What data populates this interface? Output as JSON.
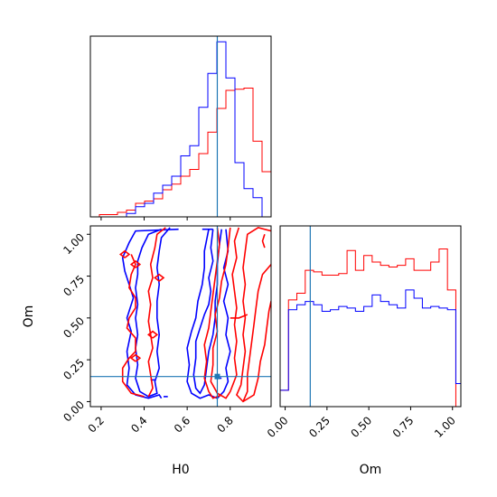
{
  "chart_data": {
    "type": "corner",
    "parameters": [
      "H0",
      "Om"
    ],
    "xlabel_h0": "H0",
    "xlabel_om": "Om",
    "ylabel_om": "Om",
    "truth": {
      "H0": 0.74,
      "Om": 0.15
    },
    "truth_color": "#1f77b4",
    "series_colors": {
      "red": "#ff0000",
      "blue": "#0000ff"
    },
    "h0_ticks": [
      "0.2",
      "0.4",
      "0.6",
      "0.8"
    ],
    "om_ticks": [
      "0.00",
      "0.25",
      "0.50",
      "0.75",
      "1.00"
    ],
    "h0_range": [
      0.15,
      0.99
    ],
    "om_range": [
      -0.03,
      1.05
    ],
    "hist_h0": {
      "edges": [
        0.15,
        0.192,
        0.234,
        0.276,
        0.318,
        0.36,
        0.402,
        0.444,
        0.486,
        0.528,
        0.57,
        0.612,
        0.654,
        0.696,
        0.738,
        0.78,
        0.822,
        0.864,
        0.906,
        0.948,
        0.99
      ],
      "ymax": 160,
      "red": [
        0,
        2,
        2,
        4,
        6,
        12,
        14,
        16,
        24,
        29,
        36,
        42,
        56,
        75,
        96,
        112,
        113,
        114,
        67,
        40
      ],
      "blue": [
        0,
        0,
        0,
        0,
        3,
        9,
        12,
        21,
        28,
        36,
        54,
        63,
        97,
        127,
        155,
        123,
        48,
        25,
        17,
        0
      ]
    },
    "hist_om": {
      "edges": [
        -0.03,
        0.02,
        0.07,
        0.12,
        0.17,
        0.22,
        0.27,
        0.32,
        0.37,
        0.42,
        0.47,
        0.52,
        0.57,
        0.62,
        0.67,
        0.72,
        0.77,
        0.82,
        0.87,
        0.92,
        0.97,
        1.02,
        1.05
      ],
      "ymax": 110,
      "red": [
        10,
        65,
        69,
        83,
        82,
        80,
        80,
        81,
        95,
        83,
        92,
        88,
        86,
        85,
        86,
        90,
        83,
        83,
        88,
        96,
        71,
        0
      ],
      "blue": [
        10,
        59,
        62,
        64,
        62,
        58,
        59,
        61,
        60,
        58,
        61,
        68,
        64,
        62,
        60,
        71,
        66,
        60,
        61,
        60,
        59,
        14
      ]
    },
    "contours": {
      "blue": [
        [
          [
            0.48,
            1.03
          ],
          [
            0.42,
            1.0
          ],
          [
            0.39,
            0.92
          ],
          [
            0.37,
            0.84
          ],
          [
            0.37,
            0.76
          ],
          [
            0.36,
            0.68
          ],
          [
            0.37,
            0.58
          ],
          [
            0.36,
            0.5
          ],
          [
            0.37,
            0.4
          ],
          [
            0.36,
            0.32
          ],
          [
            0.37,
            0.22
          ],
          [
            0.36,
            0.14
          ],
          [
            0.38,
            0.06
          ],
          [
            0.42,
            0.03
          ],
          [
            0.46,
            0.05
          ],
          [
            0.45,
            0.12
          ],
          [
            0.47,
            0.2
          ],
          [
            0.46,
            0.3
          ],
          [
            0.47,
            0.4
          ],
          [
            0.46,
            0.5
          ],
          [
            0.46,
            0.6
          ],
          [
            0.47,
            0.7
          ],
          [
            0.46,
            0.8
          ],
          [
            0.47,
            0.9
          ],
          [
            0.48,
            0.98
          ],
          [
            0.52,
            1.04
          ]
        ],
        [
          [
            0.56,
            1.03
          ],
          [
            0.36,
            1.02
          ],
          [
            0.33,
            0.95
          ],
          [
            0.3,
            0.86
          ],
          [
            0.31,
            0.78
          ],
          [
            0.33,
            0.7
          ],
          [
            0.35,
            0.62
          ],
          [
            0.32,
            0.5
          ],
          [
            0.34,
            0.42
          ],
          [
            0.32,
            0.3
          ],
          [
            0.33,
            0.2
          ],
          [
            0.32,
            0.1
          ],
          [
            0.36,
            0.04
          ],
          [
            0.42,
            0.02
          ],
          [
            0.47,
            0.04
          ],
          [
            0.48,
            0.02
          ]
        ],
        [
          [
            0.72,
            1.03
          ],
          [
            0.71,
            0.92
          ],
          [
            0.72,
            0.84
          ],
          [
            0.7,
            0.74
          ],
          [
            0.71,
            0.66
          ],
          [
            0.7,
            0.58
          ],
          [
            0.68,
            0.52
          ],
          [
            0.66,
            0.44
          ],
          [
            0.64,
            0.36
          ],
          [
            0.64,
            0.26
          ],
          [
            0.63,
            0.16
          ],
          [
            0.64,
            0.08
          ],
          [
            0.66,
            0.05
          ],
          [
            0.68,
            0.1
          ],
          [
            0.69,
            0.2
          ],
          [
            0.7,
            0.3
          ],
          [
            0.72,
            0.4
          ],
          [
            0.73,
            0.5
          ],
          [
            0.73,
            0.6
          ],
          [
            0.74,
            0.7
          ],
          [
            0.74,
            0.82
          ],
          [
            0.75,
            0.94
          ],
          [
            0.76,
            1.03
          ]
        ],
        [
          [
            0.78,
            1.03
          ],
          [
            0.79,
            0.9
          ],
          [
            0.77,
            0.8
          ],
          [
            0.79,
            0.7
          ],
          [
            0.77,
            0.6
          ],
          [
            0.79,
            0.5
          ],
          [
            0.78,
            0.4
          ],
          [
            0.8,
            0.3
          ],
          [
            0.78,
            0.2
          ],
          [
            0.79,
            0.12
          ],
          [
            0.77,
            0.06
          ],
          [
            0.74,
            0.02
          ],
          [
            0.7,
            0.04
          ],
          [
            0.66,
            0.02
          ],
          [
            0.62,
            0.05
          ],
          [
            0.6,
            0.12
          ],
          [
            0.61,
            0.22
          ],
          [
            0.6,
            0.32
          ],
          [
            0.62,
            0.42
          ],
          [
            0.64,
            0.5
          ],
          [
            0.65,
            0.6
          ],
          [
            0.67,
            0.7
          ],
          [
            0.68,
            0.8
          ],
          [
            0.68,
            0.9
          ],
          [
            0.7,
            1.03
          ]
        ],
        [
          [
            0.67,
            1.03
          ],
          [
            0.72,
            1.03
          ]
        ],
        [
          [
            0.43,
            0.13
          ],
          [
            0.45,
            0.13
          ]
        ],
        [
          [
            0.49,
            0.03
          ],
          [
            0.51,
            0.03
          ]
        ],
        [
          [
            0.74,
            0.14
          ],
          [
            0.76,
            0.14
          ]
        ]
      ],
      "red": [
        [
          [
            0.84,
            1.04
          ],
          [
            0.82,
            0.96
          ],
          [
            0.83,
            0.86
          ],
          [
            0.81,
            0.76
          ],
          [
            0.82,
            0.66
          ],
          [
            0.83,
            0.56
          ],
          [
            0.82,
            0.46
          ],
          [
            0.83,
            0.36
          ],
          [
            0.82,
            0.26
          ],
          [
            0.83,
            0.16
          ],
          [
            0.8,
            0.06
          ],
          [
            0.78,
            0.02
          ],
          [
            0.74,
            0.05
          ],
          [
            0.71,
            0.12
          ],
          [
            0.72,
            0.22
          ],
          [
            0.72,
            0.32
          ],
          [
            0.74,
            0.42
          ],
          [
            0.73,
            0.52
          ],
          [
            0.75,
            0.62
          ],
          [
            0.76,
            0.72
          ],
          [
            0.78,
            0.82
          ],
          [
            0.79,
            0.92
          ],
          [
            0.8,
            1.04
          ]
        ],
        [
          [
            0.99,
            1.02
          ],
          [
            0.93,
            1.04
          ],
          [
            0.88,
            1.0
          ],
          [
            0.87,
            0.9
          ],
          [
            0.86,
            0.8
          ],
          [
            0.87,
            0.7
          ],
          [
            0.86,
            0.6
          ],
          [
            0.87,
            0.5
          ],
          [
            0.86,
            0.4
          ],
          [
            0.87,
            0.3
          ],
          [
            0.86,
            0.2
          ],
          [
            0.85,
            0.1
          ],
          [
            0.83,
            0.04
          ],
          [
            0.86,
            0.0
          ],
          [
            0.91,
            0.04
          ],
          [
            0.93,
            0.14
          ],
          [
            0.94,
            0.24
          ],
          [
            0.96,
            0.34
          ],
          [
            0.97,
            0.44
          ],
          [
            0.98,
            0.54
          ],
          [
            0.99,
            0.6
          ]
        ],
        [
          [
            0.99,
            0.82
          ],
          [
            0.95,
            0.76
          ],
          [
            0.93,
            0.66
          ],
          [
            0.92,
            0.56
          ],
          [
            0.91,
            0.46
          ],
          [
            0.9,
            0.36
          ],
          [
            0.89,
            0.26
          ],
          [
            0.88,
            0.16
          ],
          [
            0.88,
            0.06
          ],
          [
            0.86,
            0.0
          ]
        ],
        [
          [
            0.76,
            0.04
          ],
          [
            0.72,
            0.02
          ],
          [
            0.7,
            0.06
          ],
          [
            0.68,
            0.14
          ],
          [
            0.69,
            0.24
          ],
          [
            0.68,
            0.34
          ],
          [
            0.7,
            0.44
          ],
          [
            0.71,
            0.54
          ],
          [
            0.72,
            0.64
          ],
          [
            0.73,
            0.74
          ],
          [
            0.74,
            0.84
          ],
          [
            0.75,
            0.94
          ],
          [
            0.74,
            1.04
          ]
        ],
        [
          [
            0.4,
            0.03
          ],
          [
            0.34,
            0.05
          ],
          [
            0.3,
            0.12
          ],
          [
            0.3,
            0.2
          ],
          [
            0.33,
            0.26
          ],
          [
            0.36,
            0.3
          ],
          [
            0.36,
            0.38
          ],
          [
            0.32,
            0.44
          ],
          [
            0.33,
            0.5
          ],
          [
            0.36,
            0.56
          ],
          [
            0.36,
            0.62
          ],
          [
            0.33,
            0.68
          ],
          [
            0.34,
            0.76
          ],
          [
            0.36,
            0.82
          ],
          [
            0.34,
            0.88
          ]
        ],
        [
          [
            0.42,
            0.03
          ],
          [
            0.44,
            0.08
          ],
          [
            0.43,
            0.16
          ],
          [
            0.42,
            0.24
          ],
          [
            0.44,
            0.32
          ],
          [
            0.43,
            0.4
          ],
          [
            0.42,
            0.48
          ],
          [
            0.43,
            0.58
          ],
          [
            0.42,
            0.66
          ],
          [
            0.44,
            0.74
          ],
          [
            0.43,
            0.82
          ],
          [
            0.45,
            0.92
          ],
          [
            0.46,
            1.0
          ],
          [
            0.5,
            1.04
          ]
        ],
        [
          [
            0.31,
            0.86
          ],
          [
            0.33,
            0.88
          ],
          [
            0.31,
            0.9
          ],
          [
            0.29,
            0.88
          ],
          [
            0.31,
            0.86
          ]
        ],
        [
          [
            0.36,
            0.8
          ],
          [
            0.38,
            0.82
          ],
          [
            0.36,
            0.84
          ],
          [
            0.34,
            0.82
          ],
          [
            0.36,
            0.8
          ]
        ],
        [
          [
            0.47,
            0.72
          ],
          [
            0.49,
            0.74
          ],
          [
            0.47,
            0.76
          ],
          [
            0.45,
            0.74
          ],
          [
            0.47,
            0.72
          ]
        ],
        [
          [
            0.36,
            0.24
          ],
          [
            0.38,
            0.26
          ],
          [
            0.36,
            0.28
          ],
          [
            0.34,
            0.26
          ],
          [
            0.36,
            0.24
          ]
        ],
        [
          [
            0.44,
            0.38
          ],
          [
            0.46,
            0.4
          ],
          [
            0.44,
            0.42
          ],
          [
            0.42,
            0.4
          ],
          [
            0.44,
            0.38
          ]
        ],
        [
          [
            0.88,
            0.52
          ],
          [
            0.84,
            0.5
          ],
          [
            0.8,
            0.5
          ]
        ],
        [
          [
            0.96,
            1.0
          ],
          [
            0.95,
            0.96
          ],
          [
            0.96,
            0.92
          ]
        ]
      ]
    }
  }
}
